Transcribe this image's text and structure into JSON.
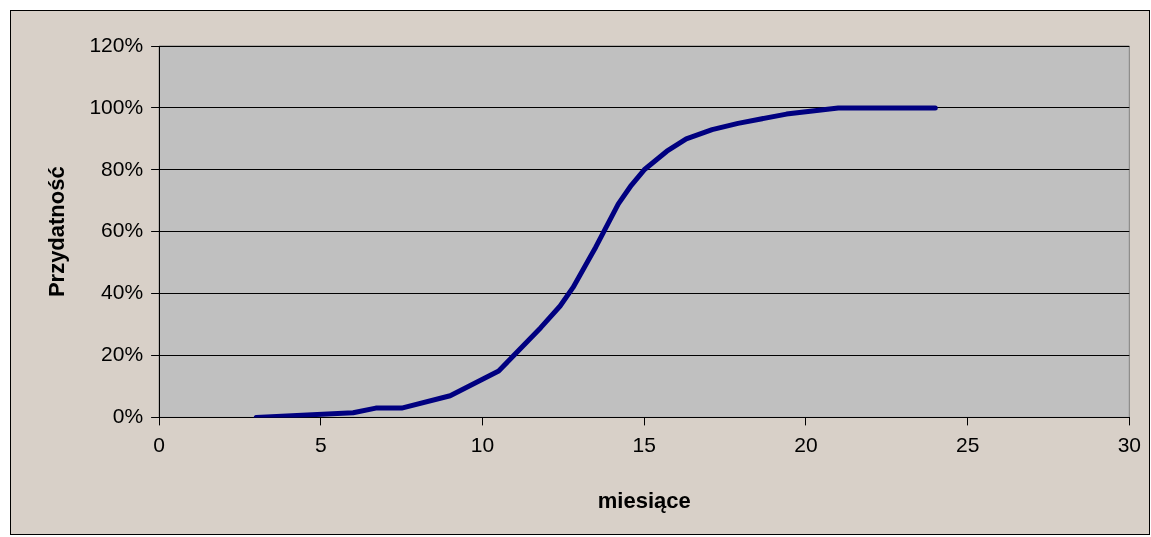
{
  "chart_data": {
    "type": "line",
    "xlabel": "miesiące",
    "ylabel": "Przydatność",
    "x": [
      3,
      6,
      6.7,
      7.5,
      9,
      10.5,
      11.8,
      12.4,
      12.8,
      13.5,
      14.2,
      14.6,
      15,
      15.7,
      16.3,
      17.1,
      17.9,
      19.4,
      21,
      24
    ],
    "series": [
      {
        "color": "#000080",
        "values": [
          0,
          1.5,
          3,
          3,
          7,
          15,
          29,
          36,
          42,
          55,
          69,
          75,
          80,
          86,
          90,
          93,
          95,
          98,
          100,
          100
        ]
      }
    ],
    "xlim": [
      0,
      30
    ],
    "xticks": [
      0,
      5,
      10,
      15,
      20,
      25,
      30
    ],
    "ylim": [
      0,
      120
    ],
    "yticks": [
      {
        "value": 0,
        "label": "0%"
      },
      {
        "value": 20,
        "label": "20%"
      },
      {
        "value": 40,
        "label": "40%"
      },
      {
        "value": 60,
        "label": "60%"
      },
      {
        "value": 80,
        "label": "80%"
      },
      {
        "value": 100,
        "label": "100%"
      },
      {
        "value": 120,
        "label": "120%"
      }
    ],
    "grid": "y",
    "legend": false,
    "marker": "none",
    "line_style": "solid"
  }
}
